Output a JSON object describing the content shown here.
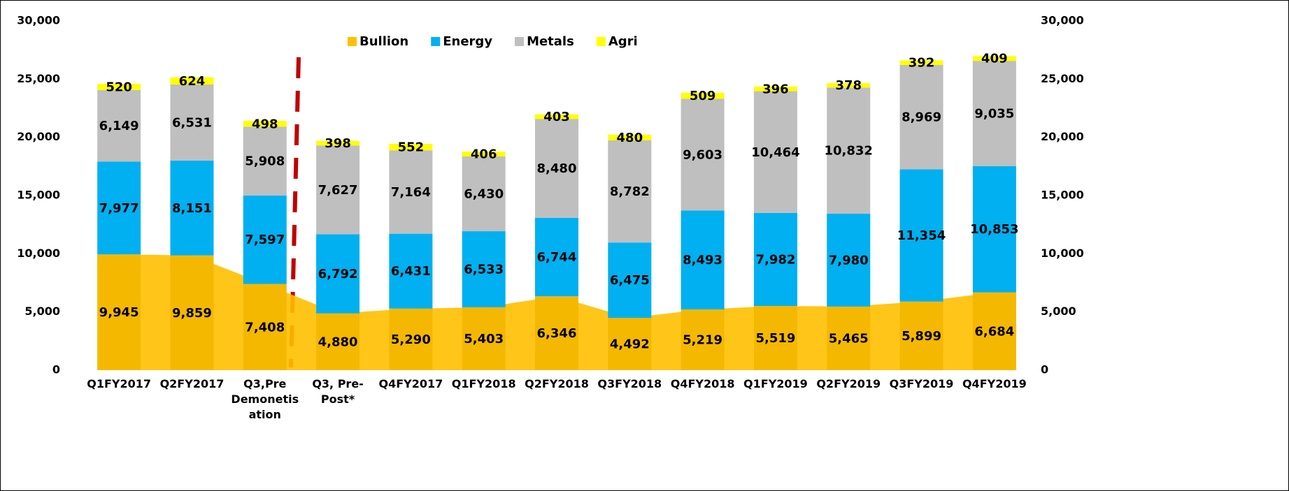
{
  "chart_data": {
    "type": "bar",
    "categories": [
      "Q1FY2017",
      "Q2FY2017",
      "Q3,Pre Demonetisation",
      "Q3, Pre-Post*",
      "Q4FY2017",
      "Q1FY2018",
      "Q2FY2018",
      "Q3FY2018",
      "Q4FY2018",
      "Q1FY2019",
      "Q2FY2019",
      "Q3FY2019",
      "Q4FY2019"
    ],
    "series": [
      {
        "name": "Bullion",
        "color": "#ffc000",
        "values": [
          9945,
          9859,
          7408,
          4880,
          5290,
          5403,
          6346,
          4492,
          5219,
          5519,
          5465,
          5899,
          6684
        ],
        "value_labels": [
          "9,945",
          "9,859",
          "7,408",
          "4,880",
          "5,290",
          "5,403",
          "6,346",
          "4,492",
          "5,219",
          "5,519",
          "5,465",
          "5,899",
          "6,684"
        ]
      },
      {
        "name": "Energy",
        "color": "#00b0f0",
        "values": [
          7977,
          8151,
          7597,
          6792,
          6431,
          6533,
          6744,
          6475,
          8493,
          7982,
          7980,
          11354,
          10853
        ],
        "value_labels": [
          "7,977",
          "8,151",
          "7,597",
          "6,792",
          "6,431",
          "6,533",
          "6,744",
          "6,475",
          "8,493",
          "7,982",
          "7,980",
          "11,354",
          "10,853"
        ]
      },
      {
        "name": "Metals",
        "color": "#bfbfbf",
        "values": [
          6149,
          6531,
          5908,
          7627,
          7164,
          6430,
          8480,
          8782,
          9603,
          10464,
          10832,
          8969,
          9035
        ],
        "value_labels": [
          "6,149",
          "6,531",
          "5,908",
          "7,627",
          "7,164",
          "6,430",
          "8,480",
          "8,782",
          "9,603",
          "10,464",
          "10,832",
          "8,969",
          "9,035"
        ]
      },
      {
        "name": "Agri",
        "color": "#ffff00",
        "values": [
          520,
          624,
          498,
          398,
          552,
          406,
          403,
          480,
          509,
          396,
          378,
          392,
          409
        ]
      }
    ],
    "ylim": [
      0,
      30000
    ],
    "yticks": [
      0,
      {
        "value": 5000,
        "label": "5,000"
      },
      {
        "value": 10000,
        "label": "10,000"
      },
      {
        "value": 15000,
        "label": "15,000"
      },
      {
        "value": 20000,
        "label": "20,000"
      },
      {
        "value": 25000,
        "label": "25,000"
      },
      {
        "value": 30000,
        "label": "30,000"
      }
    ],
    "y2lim": [
      0,
      30000
    ],
    "y2ticks": [
      0,
      {
        "value": 5000,
        "label": "5,000"
      },
      {
        "value": 10000,
        "label": "10,000"
      },
      {
        "value": 15000,
        "label": "15,000"
      },
      {
        "value": 20000,
        "label": "20,000"
      },
      {
        "value": 25000,
        "label": "25,000"
      },
      {
        "value": 30000,
        "label": "30,000"
      }
    ],
    "legend": "top"
  }
}
